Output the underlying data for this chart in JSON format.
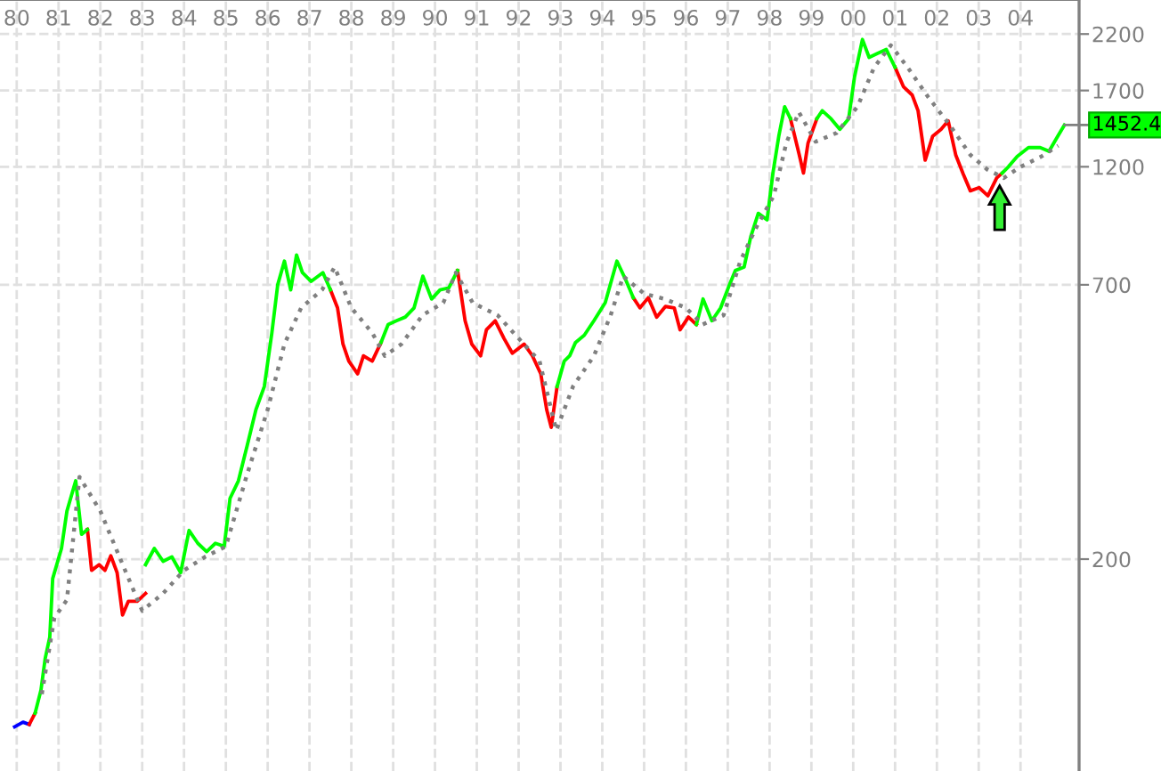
{
  "chart_data": {
    "type": "line",
    "log": "y",
    "grid": true,
    "legend": false,
    "marker": "none",
    "line_style": "solid",
    "xlim": [
      1979.6,
      2005.4
    ],
    "ylim": [
      76,
      2570
    ],
    "xticks": [
      {
        "value": 1980,
        "label": "80"
      },
      {
        "value": 1981,
        "label": "81"
      },
      {
        "value": 1982,
        "label": "82"
      },
      {
        "value": 1983,
        "label": "83"
      },
      {
        "value": 1984,
        "label": "84"
      },
      {
        "value": 1985,
        "label": "85"
      },
      {
        "value": 1986,
        "label": "86"
      },
      {
        "value": 1987,
        "label": "87"
      },
      {
        "value": 1988,
        "label": "88"
      },
      {
        "value": 1989,
        "label": "89"
      },
      {
        "value": 1990,
        "label": "90"
      },
      {
        "value": 1991,
        "label": "91"
      },
      {
        "value": 1992,
        "label": "92"
      },
      {
        "value": 1993,
        "label": "93"
      },
      {
        "value": 1994,
        "label": "94"
      },
      {
        "value": 1995,
        "label": "95"
      },
      {
        "value": 1996,
        "label": "96"
      },
      {
        "value": 1997,
        "label": "97"
      },
      {
        "value": 1998,
        "label": "98"
      },
      {
        "value": 1999,
        "label": "99"
      },
      {
        "value": 2000,
        "label": "00"
      },
      {
        "value": 2001,
        "label": "01"
      },
      {
        "value": 2002,
        "label": "02"
      },
      {
        "value": 2003,
        "label": "03"
      },
      {
        "value": 2004,
        "label": "04"
      }
    ],
    "yticks": [
      200,
      700,
      1200,
      1700,
      2200
    ],
    "series": [
      {
        "color": "#0000ff",
        "x": [
          1979.95,
          1980.15,
          1980.3
        ],
        "values": [
          93,
          95,
          94
        ]
      },
      {
        "color": "#ff0000",
        "x": [
          1980.3,
          1980.44,
          null,
          1981.69,
          1981.79,
          1981.97,
          1982.11,
          1982.25,
          1982.4,
          1982.53,
          1982.67,
          1982.88,
          1983.08,
          null,
          1987.5,
          1987.67,
          1987.8,
          1987.94,
          1988.15,
          1988.29,
          1988.5,
          1988.71,
          null,
          1990.54,
          1990.72,
          1990.88,
          1991.09,
          1991.23,
          1991.44,
          1991.65,
          1991.85,
          1992.13,
          1992.33,
          1992.53,
          1992.67,
          1992.78,
          1992.92,
          null,
          1994.74,
          1994.9,
          1995.1,
          1995.3,
          1995.51,
          1995.72,
          1995.86,
          1996.06,
          1996.25,
          null,
          1998.5,
          1998.71,
          1998.81,
          1998.92,
          1999.13,
          null,
          2001.0,
          2001.2,
          2001.41,
          2001.55,
          2001.72,
          2001.9,
          2002.1,
          2002.27,
          2002.45,
          2002.63,
          2002.8,
          2003.01,
          2003.22,
          2003.43,
          2003.56
        ],
        "values": [
          94,
          99,
          null,
          229,
          190,
          195,
          190,
          203,
          188,
          155,
          165,
          165,
          171,
          null,
          684,
          630,
          534,
          494,
          466,
          506,
          494,
          538,
          null,
          747,
          594,
          534,
          506,
          570,
          594,
          548,
          512,
          534,
          506,
          466,
          396,
          365,
          440,
          null,
          660,
          630,
          660,
          604,
          634,
          630,
          570,
          604,
          584,
          null,
          1494,
          1267,
          1166,
          1338,
          1494,
          null,
          1890,
          1730,
          1665,
          1550,
          1237,
          1380,
          1424,
          1480,
          1267,
          1161,
          1075,
          1091,
          1051,
          1140,
          1166
        ]
      },
      {
        "color": "#00ff00",
        "x": [
          1980.44,
          1980.58,
          1980.68,
          1980.79,
          1980.86,
          1981.07,
          1981.2,
          1981.41,
          1981.55,
          1981.69,
          null,
          1983.08,
          1983.29,
          1983.5,
          1983.71,
          1983.92,
          1984.12,
          1984.33,
          1984.54,
          1984.75,
          1984.96,
          1985.1,
          1985.3,
          1985.51,
          1985.72,
          1985.92,
          1986.1,
          1986.24,
          1986.4,
          1986.55,
          1986.69,
          1986.83,
          1987.04,
          1987.32,
          1987.5,
          null,
          1988.71,
          1988.88,
          1989.08,
          1989.29,
          1989.5,
          1989.71,
          1989.92,
          1990.12,
          1990.33,
          1990.54,
          null,
          1992.92,
          1993.09,
          1993.22,
          1993.36,
          1993.57,
          1993.8,
          1994.07,
          1994.35,
          1994.56,
          1994.74,
          null,
          1996.25,
          1996.41,
          1996.62,
          1996.83,
          1997.04,
          1997.18,
          1997.39,
          1997.55,
          1997.73,
          1997.94,
          1998.08,
          1998.22,
          1998.36,
          1998.5,
          null,
          1999.13,
          1999.26,
          1999.47,
          1999.68,
          1999.89,
          2000.03,
          2000.22,
          2000.38,
          2000.58,
          2000.79,
          2001.0,
          null,
          2003.56,
          2003.71,
          2003.92,
          2004.19,
          2004.47,
          2004.68,
          2004.89,
          2005.05
        ],
        "values": [
          99,
          110,
          127,
          140,
          183,
          210,
          249,
          286,
          224,
          229,
          null,
          195,
          210,
          198,
          202,
          188,
          228,
          215,
          207,
          215,
          212,
          264,
          286,
          336,
          396,
          440,
          562,
          700,
          780,
          684,
          802,
          740,
          711,
          740,
          684,
          null,
          538,
          584,
          594,
          604,
          630,
          728,
          656,
          684,
          690,
          747,
          null,
          440,
          494,
          506,
          538,
          556,
          594,
          645,
          780,
          716,
          660,
          null,
          584,
          656,
          594,
          630,
          700,
          747,
          759,
          872,
          970,
          942,
          1166,
          1380,
          1578,
          1494,
          null,
          1494,
          1550,
          1494,
          1424,
          1494,
          1808,
          2146,
          1977,
          2014,
          2050,
          1890,
          null,
          1166,
          1200,
          1258,
          1310,
          1310,
          1288,
          1380,
          1452.4
        ]
      },
      {
        "color": "#808080",
        "line_style": "dotted",
        "x": [
          1980.6,
          1980.9,
          1981.2,
          1981.5,
          1982.0,
          1982.5,
          1983.0,
          1983.5,
          1984.0,
          1984.5,
          1985.0,
          1985.5,
          1986.0,
          1986.4,
          1986.8,
          1987.3,
          1987.6,
          1988.0,
          1988.5,
          1988.8,
          1989.2,
          1989.7,
          1990.2,
          1990.5,
          1990.9,
          1991.5,
          1992.0,
          1992.5,
          1992.9,
          1993.3,
          1993.8,
          1994.2,
          1994.5,
          1995.0,
          1995.5,
          1996.0,
          1996.4,
          1996.9,
          1997.3,
          1997.7,
          1998.1,
          1998.4,
          1998.7,
          1999.1,
          1999.6,
          2000.1,
          2000.5,
          2000.9,
          2001.3,
          2001.8,
          2002.3,
          2002.8,
          2003.2,
          2003.6,
          2004.0,
          2004.5,
          2004.9
        ],
        "values": [
          108,
          153,
          166,
          291,
          249,
          198,
          158,
          171,
          190,
          202,
          212,
          293,
          396,
          534,
          630,
          684,
          759,
          630,
          562,
          506,
          534,
          609,
          645,
          740,
          645,
          609,
          548,
          494,
          360,
          440,
          506,
          609,
          728,
          672,
          656,
          630,
          584,
          609,
          780,
          916,
          1051,
          1338,
          1540,
          1346,
          1400,
          1578,
          1890,
          2089,
          1890,
          1646,
          1455,
          1267,
          1186,
          1140,
          1200,
          1258,
          1321
        ]
      }
    ],
    "annotations": [
      {
        "text": "1452.4",
        "x": 2005.05,
        "y": 1452.4
      }
    ]
  }
}
